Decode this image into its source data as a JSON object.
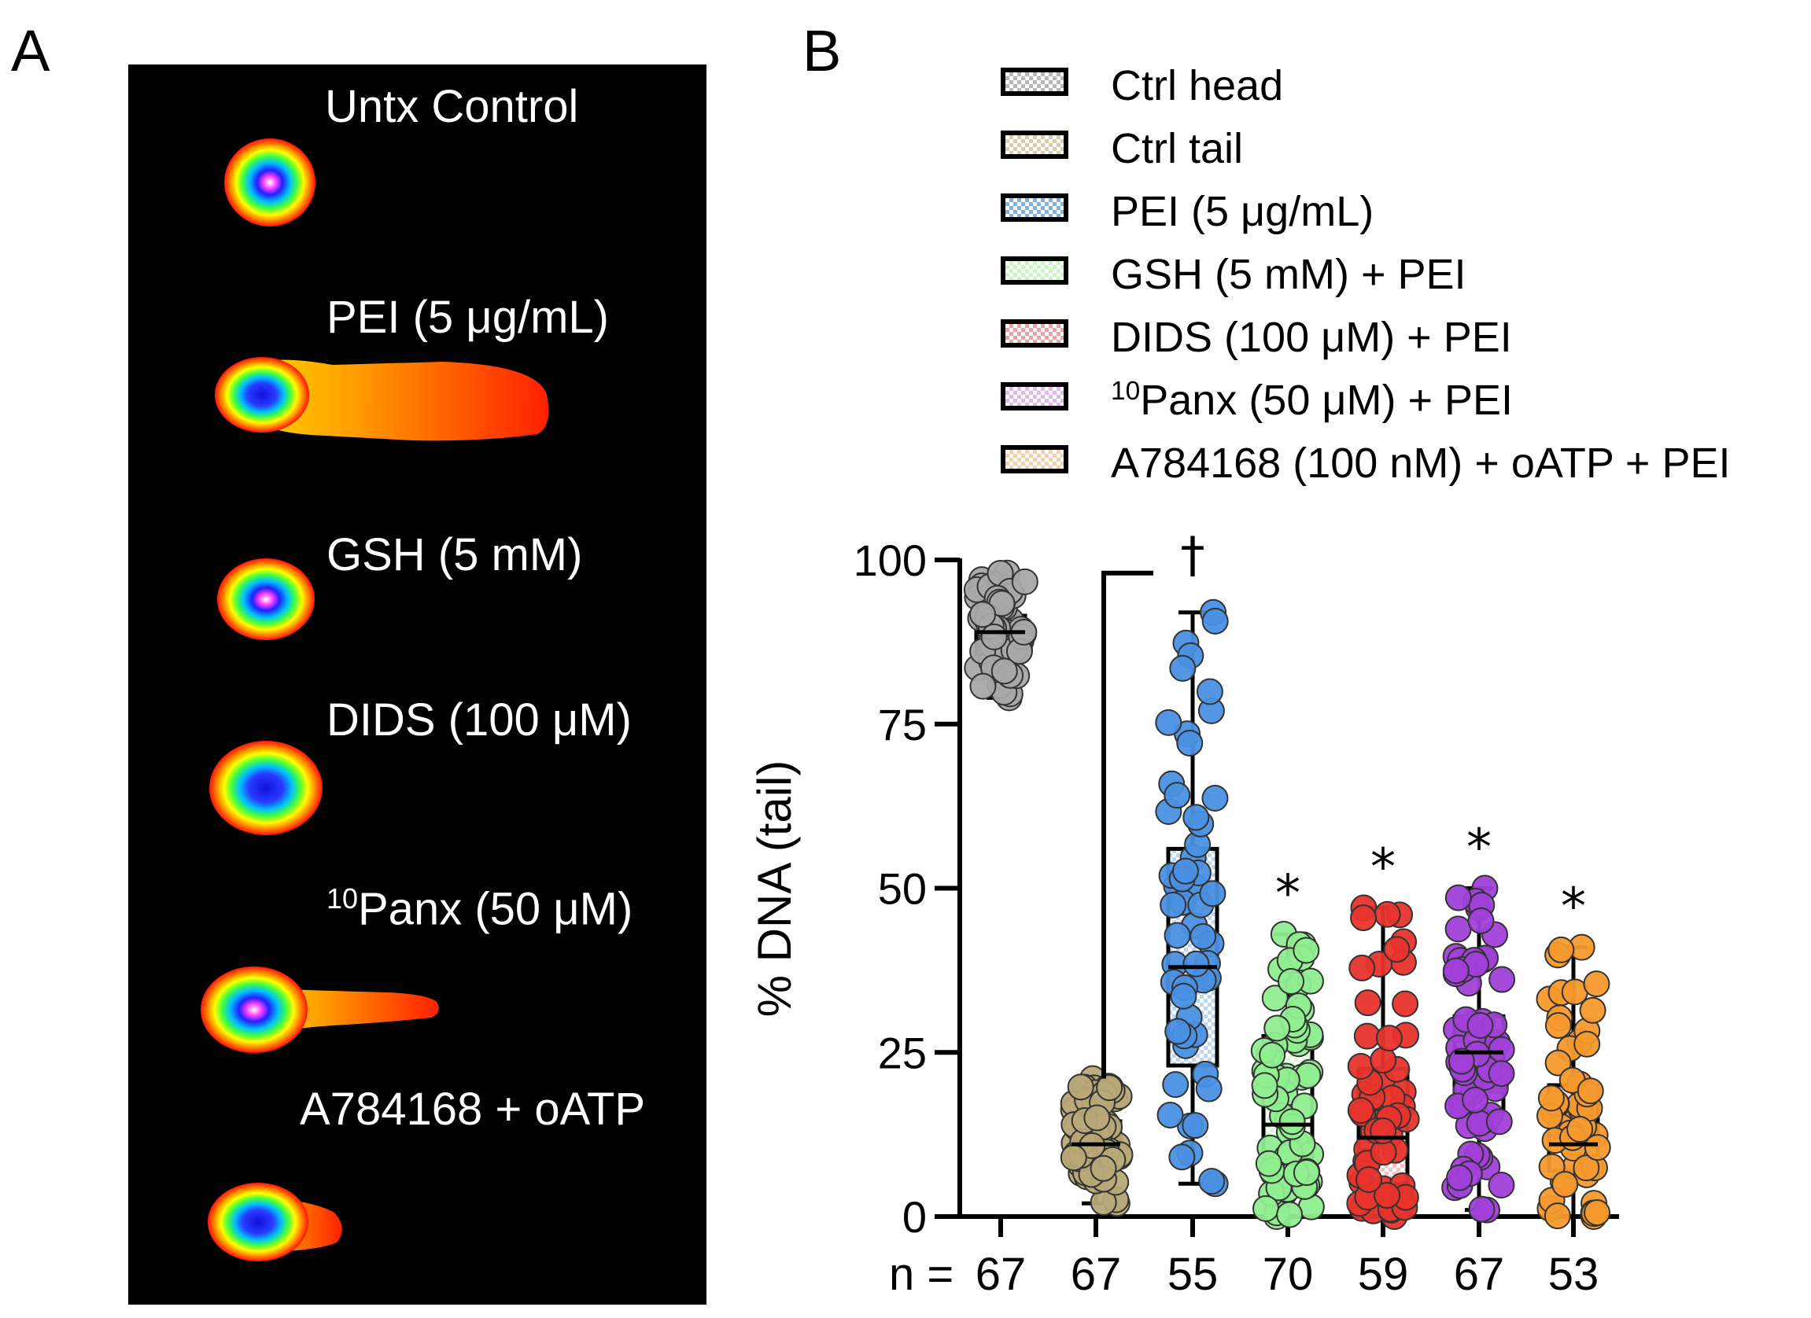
{
  "panels": {
    "a_label": "A",
    "b_label": "B"
  },
  "panel_a": {
    "background": "#000000",
    "comets": [
      {
        "label": "Untx Control",
        "sup": "",
        "rest": ""
      },
      {
        "label": "PEI (5 μg/mL)",
        "sup": "",
        "rest": ""
      },
      {
        "label": "GSH (5 mM)",
        "sup": "",
        "rest": ""
      },
      {
        "label": "DIDS (100 μM)",
        "sup": "",
        "rest": ""
      },
      {
        "label": "",
        "sup": "10",
        "rest": "Panx (50 μM)"
      },
      {
        "label": "A784168  + oATP",
        "sup": "",
        "rest": ""
      }
    ]
  },
  "legend": [
    {
      "sup": "",
      "text": "Ctrl head",
      "color": "#b8b8b8"
    },
    {
      "sup": "",
      "text": "Ctrl tail",
      "color": "#d8ccaa"
    },
    {
      "sup": "",
      "text": "PEI (5 μg/mL)",
      "color": "#7fb0e8"
    },
    {
      "sup": "",
      "text": "GSH (5 mM) + PEI",
      "color": "#c8f5c0"
    },
    {
      "sup": "",
      "text": "DIDS (100 μM) + PEI",
      "color": "#f0a0a0"
    },
    {
      "sup": "10",
      "text": "Panx (50 μM) + PEI",
      "color": "#e0b8f0"
    },
    {
      "sup": "",
      "text": "A784168 (100 nM) + oATP + PEI",
      "color": "#f8d0a8"
    }
  ],
  "chart_data": {
    "type": "box-scatter",
    "ylabel": "% DNA (tail)",
    "ylim": [
      0,
      100
    ],
    "yticks": [
      "0",
      "25",
      "50",
      "75",
      "100"
    ],
    "n_prefix": "n =",
    "n_values": [
      "67",
      "67",
      "55",
      "70",
      "59",
      "67",
      "53"
    ],
    "dagger": "†",
    "star": "*",
    "series": [
      {
        "name": "Ctrl head",
        "point_color": "#a8a8a8",
        "box_fill": "#d0d0d0",
        "q1": 85.5,
        "median": 89,
        "q3": 91.5,
        "min": 79,
        "max": 98,
        "n": 67,
        "mark": ""
      },
      {
        "name": "Ctrl tail",
        "point_color": "#b8a878",
        "box_fill": "#e4dbc0",
        "q1": 8.5,
        "median": 11,
        "q3": 14.5,
        "min": 2,
        "max": 21,
        "n": 67,
        "mark": ""
      },
      {
        "name": "PEI (5 μg/mL)",
        "point_color": "#4a90e2",
        "box_fill": "#bcd7f3",
        "q1": 23,
        "median": 38,
        "q3": 56,
        "min": 5,
        "max": 92,
        "n": 55,
        "mark": "†"
      },
      {
        "name": "GSH (5 mM) + PEI",
        "point_color": "#90ee90",
        "box_fill": "#d8f7d2",
        "q1": 9,
        "median": 14,
        "q3": 27.5,
        "min": 0,
        "max": 43,
        "n": 70,
        "mark": "*"
      },
      {
        "name": "DIDS (100 μM) + PEI",
        "point_color": "#e8342c",
        "box_fill": "#f5c2c2",
        "q1": 5,
        "median": 12,
        "q3": 22.5,
        "min": 0,
        "max": 47,
        "n": 59,
        "mark": "*"
      },
      {
        "name": "10Panx (50 μM) + PEI",
        "point_color": "#a040d8",
        "box_fill": "#e2c6f2",
        "q1": 16,
        "median": 25,
        "q3": 30.5,
        "min": 1,
        "max": 50,
        "n": 67,
        "mark": "*"
      },
      {
        "name": "A784168 (100 nM) + oATP + PEI",
        "point_color": "#f59a2e",
        "box_fill": "#fbd9b2",
        "q1": 7,
        "median": 11,
        "q3": 20,
        "min": 0,
        "max": 41,
        "n": 53,
        "mark": "*"
      }
    ],
    "bracket": {
      "from_group": 1,
      "to_group": 2,
      "y": 98
    }
  }
}
